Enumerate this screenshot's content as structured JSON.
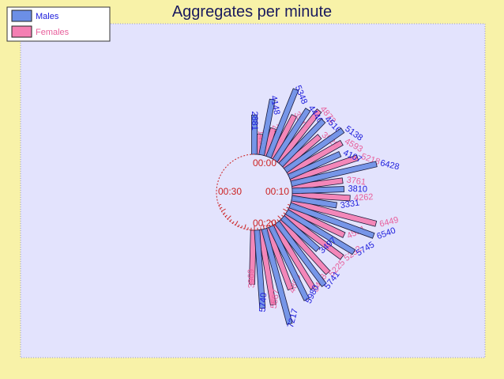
{
  "chart_data": {
    "type": "bar",
    "layout": "radial",
    "title": "Aggregates per minute",
    "legend": {
      "position": "top-left",
      "items": [
        {
          "name": "Males",
          "color": "#6c8fe6"
        },
        {
          "name": "Females",
          "color": "#f47fb3"
        }
      ]
    },
    "colors": {
      "page": "#f8f2a8",
      "plot": "#e3e3fd",
      "males": "#6c8fe6",
      "females": "#f47fb3",
      "males_label": "#1a1adb",
      "females_label": "#e8609c",
      "axis": "#cc2222",
      "title": "#1a1a5e"
    },
    "dial_labels": [
      "00:00",
      "00:10",
      "00:20",
      "00:30"
    ],
    "series": [
      {
        "name": "Males",
        "values": [
          2881,
          4148,
          5348,
          4446,
          4516,
          5138,
          4107,
          6428,
          3810,
          3331,
          6540,
          5745,
          3497,
          5741,
          5980,
          7217,
          5740
        ]
      },
      {
        "name": "Females",
        "values": [
          1497,
          2098,
          3547,
          4872,
          3520,
          4593,
          5218,
          3761,
          4262,
          6449,
          4521,
          5232,
          5225,
          5458,
          4809,
          5587,
          3969
        ]
      }
    ]
  }
}
